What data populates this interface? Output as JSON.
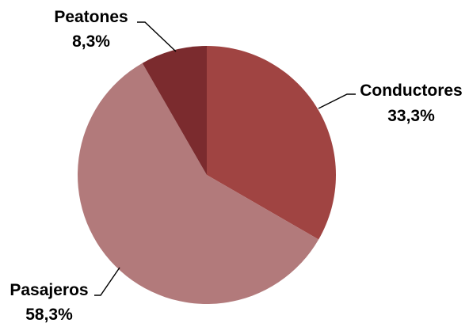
{
  "chart_data": {
    "type": "pie",
    "title": "",
    "slices": [
      {
        "label": "Conductores",
        "value": 33.3,
        "value_label": "33,3%",
        "color": "#a04442"
      },
      {
        "label": "Pasajeros",
        "value": 58.3,
        "value_label": "58,3%",
        "color": "#b27a7b"
      },
      {
        "label": "Peatones",
        "value": 8.3,
        "value_label": "8,3%",
        "color": "#7b2b2e"
      }
    ],
    "start_angle": "12 o'clock",
    "direction": "clockwise",
    "legend": "none",
    "data_labels": "outside with leader lines"
  }
}
